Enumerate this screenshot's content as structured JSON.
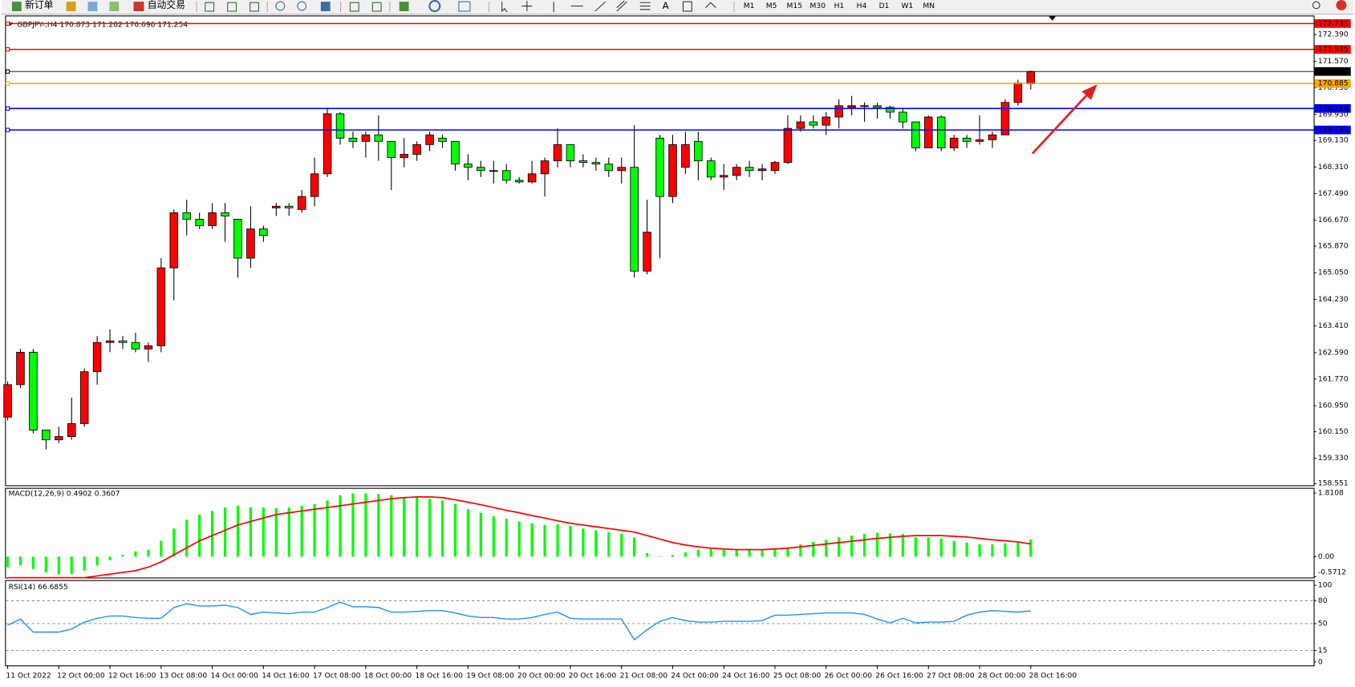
{
  "toolbar": {
    "buttons": [
      "新订单",
      "自动交易"
    ],
    "text_tool": "A",
    "timeframes": [
      "M1",
      "M5",
      "M15",
      "M30",
      "H1",
      "H4",
      "D1",
      "W1",
      "MN"
    ]
  },
  "chart_data": [
    {
      "type": "candlestick",
      "title": "GBPJPY-,H4  170.873 171.282 170.696 171.254",
      "categories": [
        "11 Oct 2022",
        null,
        null,
        null,
        "12 Oct 00:00",
        null,
        null,
        null,
        "12 Oct 16:00",
        null,
        null,
        null,
        "13 Oct 08:00",
        null,
        null,
        null,
        "14 Oct 00:00",
        null,
        null,
        null,
        "14 Oct 16:00",
        null,
        null,
        null,
        "17 Oct 08:00",
        null,
        null,
        null,
        "18 Oct 00:00",
        null,
        null,
        null,
        "18 Oct 16:00",
        null,
        null,
        null,
        "19 Oct 08:00",
        null,
        null,
        null,
        "20 Oct 00:00",
        null,
        null,
        null,
        "20 Oct 16:00",
        null,
        null,
        null,
        "21 Oct 08:00",
        null,
        null,
        null,
        "24 Oct 00:00",
        null,
        null,
        null,
        "24 Oct 16:00",
        null,
        null,
        null,
        "25 Oct 08:00",
        null,
        null,
        null,
        "26 Oct 00:00",
        null,
        null,
        null,
        "26 Oct 16:00",
        null,
        null,
        null,
        "27 Oct 08:00",
        null,
        null,
        null,
        "28 Oct 00:00",
        null,
        null,
        null,
        "28 Oct 16:00"
      ],
      "open": [
        160.6,
        161.6,
        162.6,
        160.2,
        159.9,
        160.0,
        160.4,
        162.0,
        162.9,
        162.95,
        162.9,
        162.7,
        162.8,
        165.2,
        166.9,
        166.7,
        166.5,
        166.9,
        166.7,
        165.5,
        166.4,
        167.05,
        167.1,
        167.0,
        167.4,
        168.1,
        169.95,
        169.2,
        169.1,
        169.3,
        169.1,
        168.6,
        168.7,
        169.0,
        169.2,
        169.1,
        168.4,
        168.3,
        168.2,
        168.2,
        167.9,
        167.85,
        168.1,
        168.5,
        169.0,
        168.5,
        168.45,
        168.4,
        168.2,
        168.3,
        165.1,
        169.2,
        167.4,
        168.3,
        169.1,
        168.5,
        168.0,
        168.05,
        168.3,
        168.2,
        168.2,
        168.45,
        169.5,
        169.7,
        169.6,
        169.85,
        170.15,
        170.2,
        170.2,
        170.15,
        170.0,
        169.7,
        168.9,
        169.85,
        168.9,
        169.2,
        169.1,
        169.15,
        169.3,
        170.3,
        170.873
      ],
      "high": [
        161.7,
        162.7,
        162.7,
        160.2,
        160.3,
        161.2,
        162.1,
        163.1,
        163.3,
        163.1,
        163.2,
        162.9,
        165.5,
        167.0,
        167.3,
        166.9,
        167.2,
        167.2,
        166.7,
        167.1,
        166.5,
        167.2,
        167.2,
        167.6,
        168.6,
        170.1,
        170.0,
        169.4,
        169.4,
        169.9,
        169.1,
        169.2,
        169.1,
        169.4,
        169.3,
        169.1,
        168.7,
        168.5,
        168.5,
        168.4,
        168.0,
        168.5,
        168.6,
        169.5,
        169.0,
        168.7,
        168.6,
        168.6,
        168.6,
        169.6,
        167.3,
        169.3,
        169.3,
        169.4,
        169.4,
        168.6,
        168.4,
        168.4,
        168.5,
        168.4,
        168.5,
        169.9,
        169.9,
        169.9,
        170.0,
        170.4,
        170.5,
        170.3,
        170.3,
        170.2,
        170.1,
        169.7,
        169.9,
        169.9,
        169.3,
        169.3,
        169.9,
        169.4,
        170.4,
        171.0,
        171.282
      ],
      "low": [
        160.5,
        161.5,
        160.1,
        159.6,
        159.8,
        159.9,
        160.3,
        161.6,
        162.6,
        162.7,
        162.6,
        162.3,
        162.6,
        164.2,
        166.2,
        166.4,
        166.4,
        166.0,
        164.9,
        165.2,
        166.0,
        166.8,
        166.8,
        166.9,
        167.1,
        168.0,
        169.0,
        168.9,
        168.6,
        168.5,
        167.6,
        168.3,
        168.5,
        168.8,
        168.9,
        168.2,
        167.9,
        168.0,
        167.8,
        167.8,
        167.8,
        167.8,
        167.4,
        168.3,
        168.3,
        168.3,
        168.2,
        168.0,
        167.8,
        164.9,
        165.0,
        165.5,
        167.2,
        168.1,
        167.9,
        167.9,
        167.6,
        167.9,
        168.0,
        167.9,
        168.1,
        168.4,
        169.4,
        169.5,
        169.3,
        169.5,
        169.9,
        169.7,
        169.8,
        169.8,
        169.5,
        168.8,
        168.9,
        168.8,
        168.8,
        168.9,
        169.0,
        168.9,
        169.3,
        170.2,
        170.696
      ],
      "close": [
        161.6,
        162.6,
        160.2,
        159.9,
        160.0,
        160.4,
        162.0,
        162.9,
        162.95,
        162.9,
        162.7,
        162.8,
        165.2,
        166.9,
        166.7,
        166.5,
        166.9,
        166.8,
        165.5,
        166.4,
        166.2,
        167.1,
        167.05,
        167.4,
        168.1,
        169.95,
        169.2,
        169.1,
        169.3,
        169.1,
        168.6,
        168.7,
        169.0,
        169.3,
        169.1,
        168.4,
        168.3,
        168.2,
        168.2,
        167.9,
        167.85,
        168.1,
        168.5,
        169.0,
        168.5,
        168.45,
        168.4,
        168.2,
        168.3,
        165.1,
        166.3,
        167.4,
        169.0,
        169.0,
        168.5,
        168.0,
        168.05,
        168.3,
        168.2,
        168.25,
        168.45,
        169.5,
        169.7,
        169.6,
        169.85,
        170.2,
        170.2,
        170.2,
        170.15,
        170.0,
        169.7,
        168.9,
        169.85,
        168.9,
        169.2,
        169.1,
        169.15,
        169.3,
        170.3,
        170.9,
        171.254
      ],
      "up_color": "#ff0000",
      "down_color": "#00ff00",
      "ylim": [
        158.551,
        172.82
      ],
      "yticks": [
        {
          "value": 172.39,
          "label": "172.390"
        },
        {
          "value": 171.57,
          "label": "171.570"
        },
        {
          "value": 170.75,
          "label": "170.750"
        },
        {
          "value": 169.93,
          "label": "169.930"
        },
        {
          "value": 169.13,
          "label": "169.130"
        },
        {
          "value": 168.31,
          "label": "168.310"
        },
        {
          "value": 167.49,
          "label": "167.490"
        },
        {
          "value": 166.67,
          "label": "166.670"
        },
        {
          "value": 165.87,
          "label": "165.870"
        },
        {
          "value": 165.05,
          "label": "165.050"
        },
        {
          "value": 164.23,
          "label": "164.230"
        },
        {
          "value": 163.41,
          "label": "163.410"
        },
        {
          "value": 162.59,
          "label": "162.590"
        },
        {
          "value": 161.77,
          "label": "161.770"
        },
        {
          "value": 160.95,
          "label": "160.950"
        },
        {
          "value": 160.15,
          "label": "160.150"
        },
        {
          "value": 159.33,
          "label": "159.330"
        },
        158.551
      ],
      "levels": [
        {
          "value": 172.731,
          "color": "#ff0000"
        },
        {
          "value": 171.935,
          "color": "#ff0000"
        },
        {
          "value": 171.254,
          "color": "#000000"
        },
        {
          "value": 170.885,
          "color": "#ffa500"
        },
        {
          "value": 170.114,
          "color": "#0000ff"
        },
        {
          "value": 169.451,
          "color": "#0000ff"
        }
      ]
    },
    {
      "type": "macd",
      "title": "MACD(12,26,9) 0.4902 0.3607",
      "histogram": {
        "color": "#00ff00",
        "values": [
          -0.3,
          -0.25,
          -0.35,
          -0.45,
          -0.5,
          -0.5,
          -0.4,
          -0.25,
          -0.1,
          0.05,
          0.15,
          0.2,
          0.45,
          0.8,
          1.05,
          1.2,
          1.3,
          1.4,
          1.45,
          1.4,
          1.4,
          1.38,
          1.4,
          1.45,
          1.5,
          1.6,
          1.75,
          1.8,
          1.8,
          1.78,
          1.75,
          1.7,
          1.68,
          1.65,
          1.6,
          1.5,
          1.35,
          1.25,
          1.15,
          1.08,
          1.0,
          0.95,
          0.9,
          0.92,
          0.88,
          0.8,
          0.75,
          0.7,
          0.65,
          0.55,
          0.1,
          0.0,
          0.05,
          0.12,
          0.2,
          0.22,
          0.2,
          0.18,
          0.2,
          0.2,
          0.22,
          0.25,
          0.35,
          0.42,
          0.48,
          0.55,
          0.6,
          0.65,
          0.68,
          0.66,
          0.64,
          0.55,
          0.55,
          0.52,
          0.45,
          0.4,
          0.35,
          0.35,
          0.38,
          0.4,
          0.4902
        ]
      },
      "signal": {
        "color": "#ff0000",
        "values": [
          -0.6,
          -0.6,
          -0.6,
          -0.6,
          -0.6,
          -0.6,
          -0.6,
          -0.55,
          -0.5,
          -0.45,
          -0.4,
          -0.3,
          -0.15,
          0.05,
          0.25,
          0.45,
          0.6,
          0.75,
          0.9,
          1.0,
          1.1,
          1.2,
          1.25,
          1.3,
          1.35,
          1.4,
          1.45,
          1.5,
          1.55,
          1.6,
          1.65,
          1.68,
          1.7,
          1.7,
          1.68,
          1.62,
          1.55,
          1.48,
          1.4,
          1.32,
          1.25,
          1.17,
          1.1,
          1.02,
          0.95,
          0.9,
          0.85,
          0.8,
          0.75,
          0.7,
          0.6,
          0.5,
          0.4,
          0.33,
          0.28,
          0.24,
          0.22,
          0.2,
          0.2,
          0.2,
          0.22,
          0.24,
          0.28,
          0.32,
          0.36,
          0.4,
          0.44,
          0.48,
          0.52,
          0.55,
          0.58,
          0.6,
          0.6,
          0.6,
          0.58,
          0.56,
          0.52,
          0.48,
          0.45,
          0.42,
          0.3607
        ]
      },
      "ylim": [
        -0.5712,
        1.8108
      ],
      "yticks": [
        1.8108,
        {
          "value": 0,
          "label": "0.00"
        },
        -0.5712
      ]
    },
    {
      "type": "rsi",
      "title": "RSI(14) 66.6855",
      "color": "#1e90ff",
      "values": [
        48,
        56,
        39,
        39,
        39,
        43,
        52,
        57,
        60,
        60,
        58,
        57,
        57,
        71,
        76,
        73,
        73,
        74,
        71,
        62,
        65,
        64,
        63,
        65,
        65,
        71,
        78,
        72,
        72,
        71,
        65,
        65,
        66,
        67,
        67,
        64,
        60,
        58,
        58,
        56,
        56,
        58,
        62,
        65,
        57,
        56,
        56,
        56,
        56,
        29,
        42,
        53,
        58,
        54,
        52,
        52,
        53,
        53,
        53,
        54,
        61,
        61,
        62,
        63,
        64,
        64,
        64,
        62,
        56,
        51,
        57,
        51,
        52,
        52,
        53,
        61,
        65,
        67,
        66,
        65,
        66.6855
      ],
      "ylim": [
        0,
        100
      ],
      "yticks": [
        100,
        80,
        50,
        15,
        0
      ]
    }
  ]
}
